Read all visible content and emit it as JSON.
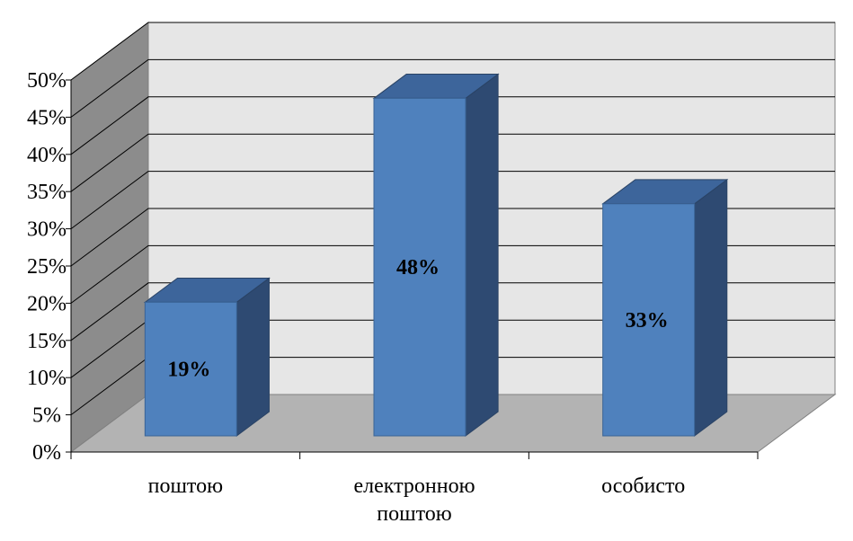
{
  "chart_data": {
    "type": "bar",
    "categories": [
      "поштою",
      "електронною поштою",
      "особисто"
    ],
    "category_lines": [
      [
        "поштою"
      ],
      [
        "електронною",
        "поштою"
      ],
      [
        "особисто"
      ]
    ],
    "values": [
      19,
      48,
      33
    ],
    "data_labels": [
      "19%",
      "48%",
      "33%"
    ],
    "y_ticks": [
      "0%",
      "5%",
      "10%",
      "15%",
      "20%",
      "25%",
      "30%",
      "35%",
      "40%",
      "45%",
      "50%"
    ],
    "ylim": [
      0,
      50
    ],
    "grid": true,
    "three_d": true,
    "colors": {
      "bar_front": "#4f81bd",
      "bar_side": "#2e4a72",
      "bar_top": "#3d659b",
      "back_wall": "#e6e6e6",
      "side_wall": "#8c8c8c",
      "floor": "#b3b3b3",
      "grid": "#000000"
    }
  }
}
